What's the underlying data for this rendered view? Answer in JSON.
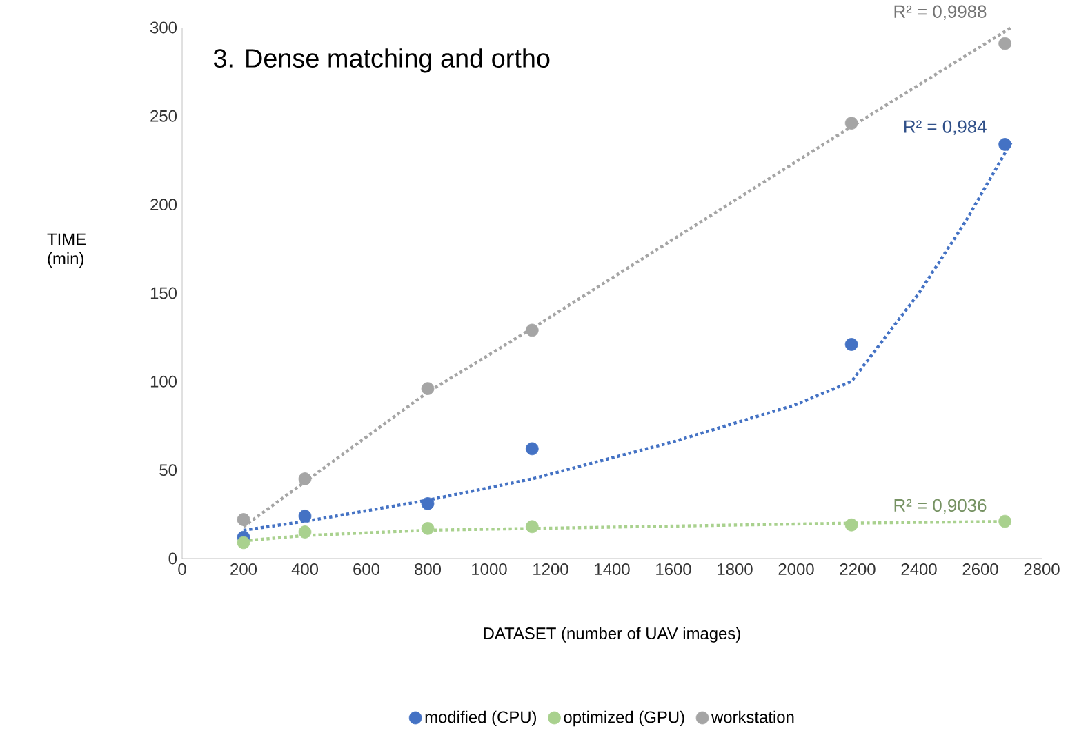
{
  "chart_data": {
    "type": "scatter",
    "title": "3. Dense matching and ortho",
    "xlabel": "DATASET (number of UAV images)",
    "ylabel": "TIME (min)",
    "xlim": [
      0,
      2800
    ],
    "xticks": [
      0,
      200,
      400,
      600,
      800,
      1000,
      1200,
      1400,
      1600,
      1800,
      2000,
      2200,
      2400,
      2600,
      2800
    ],
    "ylim": [
      0,
      300
    ],
    "yticks": [
      0,
      50,
      100,
      150,
      200,
      250,
      300
    ],
    "grid": false,
    "legend": "bottom",
    "marker": "circle",
    "series": [
      {
        "name": "modified (CPU)",
        "color": "#4472c4",
        "x": [
          200,
          400,
          800,
          1140,
          2180,
          2680
        ],
        "values": [
          12,
          24,
          31,
          62,
          121,
          234
        ]
      },
      {
        "name": "optimized (GPU)",
        "color": "#a9d18e",
        "x": [
          200,
          400,
          800,
          1140,
          2180,
          2680
        ],
        "values": [
          9,
          15,
          17,
          18,
          19,
          21
        ]
      },
      {
        "name": "workstation",
        "color": "#a5a5a5",
        "x": [
          200,
          400,
          800,
          1140,
          2180,
          2680
        ],
        "values": [
          22,
          45,
          96,
          129,
          246,
          291
        ]
      },
      {
        "type": "line",
        "marker": "none",
        "line_style": "dotted",
        "color": "#a5a5a5",
        "x": [
          200,
          800,
          1140,
          2180,
          2700
        ],
        "values": [
          18,
          94,
          130,
          244,
          300
        ]
      },
      {
        "type": "line",
        "marker": "none",
        "line_style": "dotted",
        "color": "#4472c4",
        "x": [
          200,
          400,
          800,
          1140,
          1600,
          2000,
          2180,
          2400,
          2550,
          2700
        ],
        "values": [
          16,
          21,
          33,
          45,
          66,
          87,
          100,
          150,
          190,
          235
        ]
      },
      {
        "type": "line",
        "marker": "none",
        "line_style": "dotted",
        "color": "#a9d18e",
        "x": [
          200,
          400,
          800,
          1140,
          2180,
          2700
        ],
        "values": [
          10,
          13,
          16,
          17,
          20,
          21
        ]
      }
    ],
    "annotations": [
      "R² = 0,9988",
      "R² = 0,984",
      "R² = 0,9036"
    ]
  }
}
